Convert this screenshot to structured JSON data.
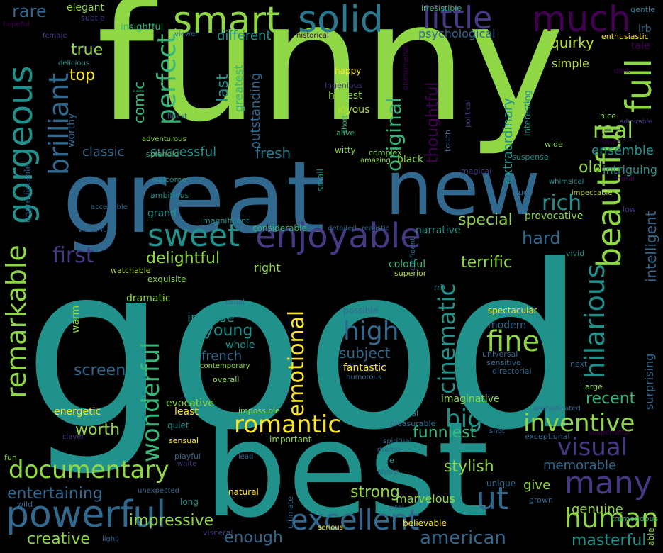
{
  "background": "#000000",
  "palette": {
    "yellow": "#fde725",
    "lime": "#8fd744",
    "green": "#35b779",
    "teal": "#21918c",
    "blue": "#31688e",
    "indigo": "#443983",
    "purple": "#440154"
  },
  "words": [
    {
      "text": "funny",
      "color": "#8fd744"
    },
    {
      "text": "good",
      "color": "#21918c"
    },
    {
      "text": "best",
      "color": "#21918c"
    },
    {
      "text": "great",
      "color": "#31688e"
    },
    {
      "text": "new",
      "color": "#31688e"
    },
    {
      "text": "gorgeous",
      "color": "#21918c"
    },
    {
      "text": "smart",
      "color": "#8fd744"
    },
    {
      "text": "solid",
      "color": "#2a788e"
    },
    {
      "text": "little",
      "color": "#443983"
    },
    {
      "text": "much",
      "color": "#440154"
    },
    {
      "text": "rare",
      "color": "#31688e"
    },
    {
      "text": "elegant",
      "color": "#90d743"
    },
    {
      "text": "subtle",
      "color": "#443983"
    },
    {
      "text": "irresistible",
      "color": "#35b779"
    },
    {
      "text": "gentle",
      "color": "#2a788e"
    },
    {
      "text": "hopeful",
      "color": "#440154"
    },
    {
      "text": "female",
      "color": "#443983"
    },
    {
      "text": "insightful",
      "color": "#35b779"
    },
    {
      "text": "viewer",
      "color": "#31688e"
    },
    {
      "text": "historical",
      "color": "#440154"
    },
    {
      "text": "enthusiastic",
      "color": "#fde725"
    },
    {
      "text": "lrb",
      "color": "#31688e"
    },
    {
      "text": "tale",
      "color": "#440154"
    },
    {
      "text": "brilliant",
      "color": "#31688e"
    },
    {
      "text": "true",
      "color": "#8fd744"
    },
    {
      "text": "perfect",
      "color": "#35b779"
    },
    {
      "text": "different",
      "color": "#21918c"
    },
    {
      "text": "psychological",
      "color": "#31688e"
    },
    {
      "text": "quirky",
      "color": "#b5de2b"
    },
    {
      "text": "full",
      "color": "#8fd744"
    },
    {
      "text": "beautiful",
      "color": "#8fd744"
    },
    {
      "text": "delicious",
      "color": "#21918c"
    },
    {
      "text": "phenomenal",
      "color": "#440154"
    },
    {
      "text": "last",
      "color": "#21918c"
    },
    {
      "text": "greatest",
      "color": "#35b779"
    },
    {
      "text": "happy",
      "color": "#fde725"
    },
    {
      "text": "simple",
      "color": "#b5de2b"
    },
    {
      "text": "top",
      "color": "#fde725"
    },
    {
      "text": "comic",
      "color": "#35b779"
    },
    {
      "text": "ingenious",
      "color": "#443983"
    },
    {
      "text": "dark",
      "color": "#440154"
    },
    {
      "text": "honest",
      "color": "#8fd744"
    },
    {
      "text": "original",
      "color": "#35b779"
    },
    {
      "text": "extraordinary",
      "color": "#21918c"
    },
    {
      "text": "outstanding",
      "color": "#31688e"
    },
    {
      "text": "joyous",
      "color": "#b5de2b"
    },
    {
      "text": "political",
      "color": "#443983"
    },
    {
      "text": "worthy",
      "color": "#31688e"
    },
    {
      "text": "finest",
      "color": "#31688e"
    },
    {
      "text": "short",
      "color": "#35b779"
    },
    {
      "text": "alive",
      "color": "#35b779"
    },
    {
      "text": "thoughtful",
      "color": "#440154"
    },
    {
      "text": "nice",
      "color": "#8fd744"
    },
    {
      "text": "admirable",
      "color": "#443983"
    },
    {
      "text": "real",
      "color": "#8fd744"
    },
    {
      "text": "future",
      "color": "#440154"
    },
    {
      "text": "interesting",
      "color": "#21918c"
    },
    {
      "text": "classic",
      "color": "#31688e"
    },
    {
      "text": "successful",
      "color": "#21918c"
    },
    {
      "text": "fresh",
      "color": "#2a788e"
    },
    {
      "text": "adventurous",
      "color": "#8fd744"
    },
    {
      "text": "witty",
      "color": "#8fd744"
    },
    {
      "text": "complex",
      "color": "#8fd744"
    },
    {
      "text": "touch",
      "color": "#31688e"
    },
    {
      "text": "wide",
      "color": "#8fd744"
    },
    {
      "text": "suspense",
      "color": "#21918c"
    },
    {
      "text": "ensemble",
      "color": "#21918c"
    },
    {
      "text": "splendid",
      "color": "#35b779"
    },
    {
      "text": "amazing",
      "color": "#8fd744"
    },
    {
      "text": "black",
      "color": "#8fd744"
    },
    {
      "text": "magical",
      "color": "#443983"
    },
    {
      "text": "intriguing",
      "color": "#21918c"
    },
    {
      "text": "moral",
      "color": "#440154"
    },
    {
      "text": "whimsical",
      "color": "#21918c"
    },
    {
      "text": "welcome",
      "color": "#21918c"
    },
    {
      "text": "old",
      "color": "#8fd744"
    },
    {
      "text": "small",
      "color": "#21918c"
    },
    {
      "text": "huge",
      "color": "#31688e"
    },
    {
      "text": "impeccable",
      "color": "#b5de2b"
    },
    {
      "text": "unpredictable",
      "color": "#31688e"
    },
    {
      "text": "ambitious",
      "color": "#21918c"
    },
    {
      "text": "accessible",
      "color": "#31688e"
    },
    {
      "text": "rich",
      "color": "#21918c"
    },
    {
      "text": "intelligent",
      "color": "#31688e"
    },
    {
      "text": "grand",
      "color": "#21918c"
    },
    {
      "text": "magnificent",
      "color": "#21918c"
    },
    {
      "text": "low",
      "color": "#443983"
    },
    {
      "text": "remarkable",
      "color": "#8fd744"
    },
    {
      "text": "sweet",
      "color": "#21918c"
    },
    {
      "text": "enjoyable",
      "color": "#443983"
    },
    {
      "text": "vibrant",
      "color": "#31688e"
    },
    {
      "text": "narrative",
      "color": "#21918c"
    },
    {
      "text": "special",
      "color": "#8fd744"
    },
    {
      "text": "provocative",
      "color": "#8fd744"
    },
    {
      "text": "hilarious",
      "color": "#21918c"
    },
    {
      "text": "considerable",
      "color": "#35b779"
    },
    {
      "text": "detailed",
      "color": "#31688e"
    },
    {
      "text": "realistic",
      "color": "#31688e"
    },
    {
      "text": "hard",
      "color": "#31688e"
    },
    {
      "text": "first",
      "color": "#443983"
    },
    {
      "text": "delightful",
      "color": "#8fd744"
    },
    {
      "text": "vivid",
      "color": "#21918c"
    },
    {
      "text": "confident",
      "color": "#31688e"
    },
    {
      "text": "watchable",
      "color": "#b5de2b"
    },
    {
      "text": "right",
      "color": "#8fd744"
    },
    {
      "text": "colorful",
      "color": "#35b779"
    },
    {
      "text": "superior",
      "color": "#b5de2b"
    },
    {
      "text": "terrific",
      "color": "#8fd744"
    },
    {
      "text": "exquisite",
      "color": "#8fd744"
    },
    {
      "text": "rrb",
      "color": "#21918c"
    },
    {
      "text": "cinematic",
      "color": "#21918c"
    },
    {
      "text": "emotional",
      "color": "#fde725"
    },
    {
      "text": "wonderful",
      "color": "#35b779"
    },
    {
      "text": "dramatic",
      "color": "#8fd744"
    },
    {
      "text": "usual",
      "color": "#31688e"
    },
    {
      "text": "possible",
      "color": "#31688e"
    },
    {
      "text": "spectacular",
      "color": "#fde725"
    },
    {
      "text": "surprising",
      "color": "#31688e"
    },
    {
      "text": "intense",
      "color": "#21918c"
    },
    {
      "text": "high",
      "color": "#31688e"
    },
    {
      "text": "young",
      "color": "#21918c"
    },
    {
      "text": "modern",
      "color": "#31688e"
    },
    {
      "text": "fine",
      "color": "#8fd744"
    },
    {
      "text": "warm",
      "color": "#8fd744"
    },
    {
      "text": "whole",
      "color": "#21918c"
    },
    {
      "text": "french",
      "color": "#31688e"
    },
    {
      "text": "subject",
      "color": "#31688e"
    },
    {
      "text": "sensitive",
      "color": "#31688e"
    },
    {
      "text": "universal",
      "color": "#31688e"
    },
    {
      "text": "screen",
      "color": "#31688e"
    },
    {
      "text": "directorial",
      "color": "#31688e"
    },
    {
      "text": "next",
      "color": "#31688e"
    },
    {
      "text": "contemporary",
      "color": "#8fd744"
    },
    {
      "text": "fantastic",
      "color": "#fde725"
    },
    {
      "text": "humorous",
      "color": "#31688e"
    },
    {
      "text": "overall",
      "color": "#8fd744"
    },
    {
      "text": "large",
      "color": "#8fd744"
    },
    {
      "text": "imaginative",
      "color": "#8fd744"
    },
    {
      "text": "evocative",
      "color": "#8fd744"
    },
    {
      "text": "recent",
      "color": "#35b779"
    },
    {
      "text": "romantic",
      "color": "#fde725"
    },
    {
      "text": "big",
      "color": "#21918c"
    },
    {
      "text": "energetic",
      "color": "#fde725"
    },
    {
      "text": "least",
      "color": "#fde725"
    },
    {
      "text": "impossible",
      "color": "#8fd744"
    },
    {
      "text": "technical",
      "color": "#21918c"
    },
    {
      "text": "sophisticated",
      "color": "#31688e"
    },
    {
      "text": "inventive",
      "color": "#8fd744"
    },
    {
      "text": "quiet",
      "color": "#21918c"
    },
    {
      "text": "pleasurable",
      "color": "#31688e"
    },
    {
      "text": "funniest",
      "color": "#35b779"
    },
    {
      "text": "worth",
      "color": "#8fd744"
    },
    {
      "text": "sensual",
      "color": "#fde725"
    },
    {
      "text": "spiritual",
      "color": "#31688e"
    },
    {
      "text": "shot",
      "color": "#31688e"
    },
    {
      "text": "exceptional",
      "color": "#31688e"
    },
    {
      "text": "suspenseful",
      "color": "#440154"
    },
    {
      "text": "visual",
      "color": "#443983"
    },
    {
      "text": "clever",
      "color": "#443983"
    },
    {
      "text": "playful",
      "color": "#31688e"
    },
    {
      "text": "important",
      "color": "#8fd744"
    },
    {
      "text": "drama",
      "color": "#31688e"
    },
    {
      "text": "fun",
      "color": "#8fd744"
    },
    {
      "text": "white",
      "color": "#443983"
    },
    {
      "text": "lead",
      "color": "#31688e"
    },
    {
      "text": "sure",
      "color": "#21918c"
    },
    {
      "text": "stylish",
      "color": "#8fd744"
    },
    {
      "text": "memorable",
      "color": "#31688e"
    },
    {
      "text": "documentary",
      "color": "#8fd744"
    },
    {
      "text": "many",
      "color": "#443983"
    },
    {
      "text": "sharp",
      "color": "#31688e"
    },
    {
      "text": "entertaining",
      "color": "#31688e"
    },
    {
      "text": "unexpected",
      "color": "#31688e"
    },
    {
      "text": "natural",
      "color": "#fde725"
    },
    {
      "text": "unique",
      "color": "#31688e"
    },
    {
      "text": "give",
      "color": "#8fd744"
    },
    {
      "text": "strong",
      "color": "#8fd744"
    },
    {
      "text": "ut",
      "color": "#31688e"
    },
    {
      "text": "genuine",
      "color": "#8fd744"
    },
    {
      "text": "grown",
      "color": "#31688e"
    },
    {
      "text": "wild",
      "color": "#31688e"
    },
    {
      "text": "powerful",
      "color": "#31688e"
    },
    {
      "text": "long",
      "color": "#21918c"
    },
    {
      "text": "marvelous",
      "color": "#8fd744"
    },
    {
      "text": "vital",
      "color": "#31688e"
    },
    {
      "text": "human",
      "color": "#8fd744"
    },
    {
      "text": "tremendous",
      "color": "#35b779"
    },
    {
      "text": "able",
      "color": "#8fd744"
    },
    {
      "text": "ultimate",
      "color": "#31688e"
    },
    {
      "text": "excellent",
      "color": "#31688e"
    },
    {
      "text": "creative",
      "color": "#8fd744"
    },
    {
      "text": "impressive",
      "color": "#8fd744"
    },
    {
      "text": "visceral",
      "color": "#443983"
    },
    {
      "text": "enough",
      "color": "#31688e"
    },
    {
      "text": "believable",
      "color": "#fde725"
    },
    {
      "text": "american",
      "color": "#31688e"
    },
    {
      "text": "serious",
      "color": "#fde725"
    },
    {
      "text": "light",
      "color": "#31688e"
    },
    {
      "text": "masterful",
      "color": "#21918c"
    }
  ]
}
